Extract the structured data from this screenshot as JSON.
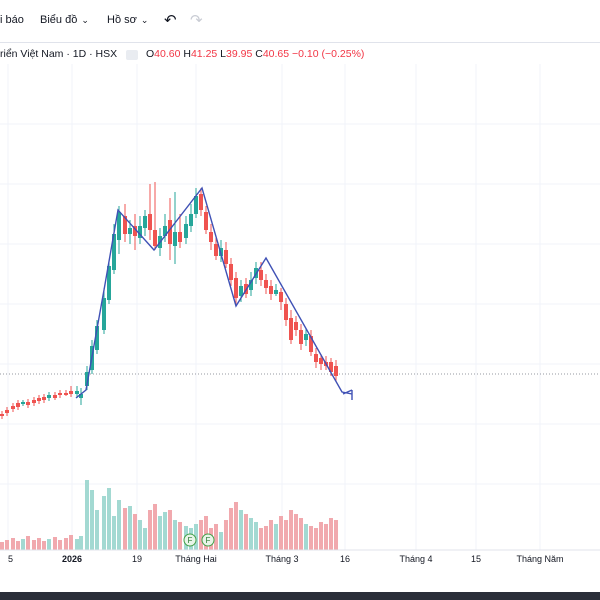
{
  "toolbar": {
    "report_label": "i báo",
    "chart_label": "Biểu đồ",
    "profile_label": "Hồ sơ",
    "undo_icon": "undo-icon",
    "redo_icon": "redo-icon"
  },
  "legend": {
    "title": "riển Việt Nam · 1D · HSX",
    "o_label": "O",
    "o_value": "40.60",
    "h_label": "H",
    "h_value": "41.25",
    "l_label": "L",
    "l_value": "39.95",
    "c_label": "C",
    "c_value": "40.65",
    "change": "−0.10 (−0.25%)"
  },
  "colors": {
    "up": "#26a69a",
    "down": "#ef5350",
    "vol_up": "#a3d9d2",
    "vol_down": "#f1a9ae",
    "trend": "#3f51b5"
  },
  "chart_data": {
    "type": "candlestick",
    "x_labels": [
      "5",
      "2026",
      "19",
      "Tháng Hai",
      "Tháng 3",
      "16",
      "Tháng 4",
      "15",
      "Tháng Năm"
    ],
    "markers": [
      "F",
      "F"
    ]
  }
}
